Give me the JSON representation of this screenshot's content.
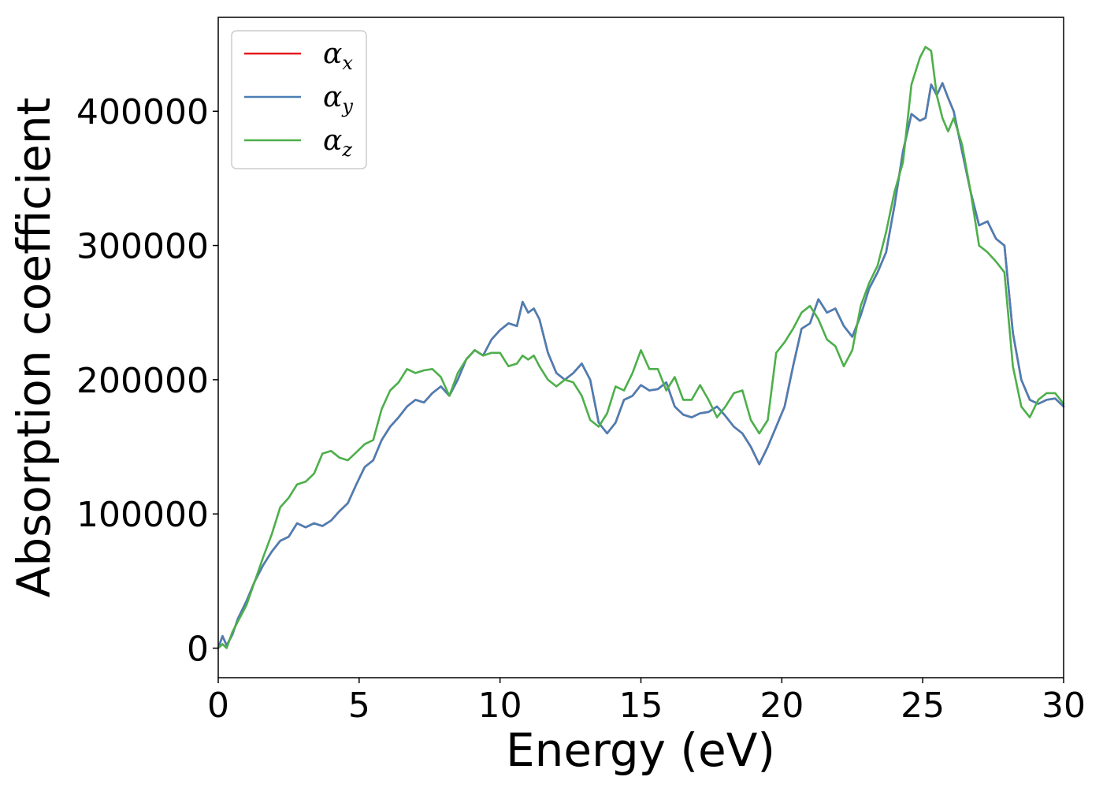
{
  "chart_data": {
    "type": "line",
    "xlabel": "Energy (eV)",
    "ylabel": "Absorption coefficient",
    "xlim": [
      0,
      30
    ],
    "ylim": [
      -22000,
      470000
    ],
    "xticks": [
      0,
      5,
      10,
      15,
      20,
      25,
      30
    ],
    "yticks": [
      0,
      100000,
      200000,
      300000,
      400000
    ],
    "grid": false,
    "legend_position": "top-left",
    "series": [
      {
        "name": "α",
        "subscript": "x",
        "color": "#e41a1c",
        "x": [
          0,
          0.15,
          0.3,
          0.5,
          0.7,
          1.0,
          1.3,
          1.6,
          1.9,
          2.2,
          2.5,
          2.8,
          3.1,
          3.4,
          3.7,
          4.0,
          4.3,
          4.6,
          4.9,
          5.2,
          5.5,
          5.8,
          6.1,
          6.4,
          6.7,
          7.0,
          7.3,
          7.6,
          7.9,
          8.2,
          8.5,
          8.8,
          9.1,
          9.4,
          9.7,
          10.0,
          10.3,
          10.6,
          10.8,
          11.0,
          11.2,
          11.4,
          11.7,
          12.0,
          12.3,
          12.6,
          12.9,
          13.2,
          13.5,
          13.8,
          14.1,
          14.4,
          14.7,
          15.0,
          15.3,
          15.6,
          15.9,
          16.2,
          16.5,
          16.8,
          17.1,
          17.4,
          17.7,
          18.0,
          18.3,
          18.6,
          18.9,
          19.2,
          19.5,
          19.8,
          20.1,
          20.4,
          20.7,
          21.0,
          21.3,
          21.6,
          21.9,
          22.2,
          22.5,
          22.8,
          23.1,
          23.4,
          23.7,
          24.0,
          24.3,
          24.6,
          24.9,
          25.1,
          25.3,
          25.5,
          25.7,
          25.9,
          26.1,
          26.4,
          26.7,
          27.0,
          27.3,
          27.6,
          27.9,
          28.2,
          28.5,
          28.8,
          29.1,
          29.4,
          29.7,
          30.0
        ],
        "y": [
          0,
          9000,
          2000,
          10000,
          22000,
          35000,
          50000,
          62000,
          72000,
          80000,
          83000,
          93000,
          90000,
          93000,
          91000,
          95000,
          102000,
          108000,
          122000,
          135000,
          140000,
          155000,
          165000,
          172000,
          180000,
          185000,
          183000,
          190000,
          195000,
          188000,
          200000,
          215000,
          222000,
          218000,
          230000,
          237000,
          242000,
          240000,
          258000,
          250000,
          253000,
          245000,
          220000,
          205000,
          200000,
          205000,
          212000,
          200000,
          168000,
          160000,
          168000,
          185000,
          188000,
          196000,
          192000,
          193000,
          198000,
          180000,
          174000,
          172000,
          175000,
          176000,
          180000,
          173000,
          165000,
          160000,
          150000,
          137000,
          150000,
          165000,
          180000,
          210000,
          238000,
          242000,
          260000,
          250000,
          253000,
          240000,
          232000,
          248000,
          268000,
          280000,
          295000,
          330000,
          370000,
          398000,
          393000,
          395000,
          420000,
          412000,
          421000,
          410000,
          400000,
          370000,
          340000,
          315000,
          318000,
          305000,
          300000,
          235000,
          200000,
          185000,
          182000,
          185000,
          186000,
          180000
        ]
      },
      {
        "name": "α",
        "subscript": "y",
        "color": "#4a7fb5",
        "x": [
          0,
          0.15,
          0.3,
          0.5,
          0.7,
          1.0,
          1.3,
          1.6,
          1.9,
          2.2,
          2.5,
          2.8,
          3.1,
          3.4,
          3.7,
          4.0,
          4.3,
          4.6,
          4.9,
          5.2,
          5.5,
          5.8,
          6.1,
          6.4,
          6.7,
          7.0,
          7.3,
          7.6,
          7.9,
          8.2,
          8.5,
          8.8,
          9.1,
          9.4,
          9.7,
          10.0,
          10.3,
          10.6,
          10.8,
          11.0,
          11.2,
          11.4,
          11.7,
          12.0,
          12.3,
          12.6,
          12.9,
          13.2,
          13.5,
          13.8,
          14.1,
          14.4,
          14.7,
          15.0,
          15.3,
          15.6,
          15.9,
          16.2,
          16.5,
          16.8,
          17.1,
          17.4,
          17.7,
          18.0,
          18.3,
          18.6,
          18.9,
          19.2,
          19.5,
          19.8,
          20.1,
          20.4,
          20.7,
          21.0,
          21.3,
          21.6,
          21.9,
          22.2,
          22.5,
          22.8,
          23.1,
          23.4,
          23.7,
          24.0,
          24.3,
          24.6,
          24.9,
          25.1,
          25.3,
          25.5,
          25.7,
          25.9,
          26.1,
          26.4,
          26.7,
          27.0,
          27.3,
          27.6,
          27.9,
          28.2,
          28.5,
          28.8,
          29.1,
          29.4,
          29.7,
          30.0
        ],
        "y": [
          0,
          9000,
          2000,
          10000,
          22000,
          35000,
          50000,
          62000,
          72000,
          80000,
          83000,
          93000,
          90000,
          93000,
          91000,
          95000,
          102000,
          108000,
          122000,
          135000,
          140000,
          155000,
          165000,
          172000,
          180000,
          185000,
          183000,
          190000,
          195000,
          188000,
          200000,
          215000,
          222000,
          218000,
          230000,
          237000,
          242000,
          240000,
          258000,
          250000,
          253000,
          245000,
          220000,
          205000,
          200000,
          205000,
          212000,
          200000,
          168000,
          160000,
          168000,
          185000,
          188000,
          196000,
          192000,
          193000,
          198000,
          180000,
          174000,
          172000,
          175000,
          176000,
          180000,
          173000,
          165000,
          160000,
          150000,
          137000,
          150000,
          165000,
          180000,
          210000,
          238000,
          242000,
          260000,
          250000,
          253000,
          240000,
          232000,
          248000,
          268000,
          280000,
          295000,
          330000,
          370000,
          398000,
          393000,
          395000,
          420000,
          412000,
          421000,
          410000,
          400000,
          370000,
          340000,
          315000,
          318000,
          305000,
          300000,
          235000,
          200000,
          185000,
          182000,
          185000,
          186000,
          180000
        ]
      },
      {
        "name": "α",
        "subscript": "z",
        "color": "#4daf4a",
        "x": [
          0,
          0.15,
          0.3,
          0.5,
          0.7,
          1.0,
          1.3,
          1.6,
          1.9,
          2.2,
          2.5,
          2.8,
          3.1,
          3.4,
          3.7,
          4.0,
          4.3,
          4.6,
          4.9,
          5.2,
          5.5,
          5.8,
          6.1,
          6.4,
          6.7,
          7.0,
          7.3,
          7.6,
          7.9,
          8.2,
          8.5,
          8.8,
          9.1,
          9.4,
          9.7,
          10.0,
          10.3,
          10.6,
          10.8,
          11.0,
          11.2,
          11.4,
          11.7,
          12.0,
          12.3,
          12.6,
          12.9,
          13.2,
          13.5,
          13.8,
          14.1,
          14.4,
          14.7,
          15.0,
          15.3,
          15.6,
          15.9,
          16.2,
          16.5,
          16.8,
          17.1,
          17.4,
          17.7,
          18.0,
          18.3,
          18.6,
          18.9,
          19.2,
          19.5,
          19.8,
          20.1,
          20.4,
          20.7,
          21.0,
          21.3,
          21.6,
          21.9,
          22.2,
          22.5,
          22.8,
          23.1,
          23.4,
          23.7,
          24.0,
          24.3,
          24.6,
          24.9,
          25.1,
          25.3,
          25.5,
          25.7,
          25.9,
          26.1,
          26.4,
          26.7,
          27.0,
          27.3,
          27.6,
          27.9,
          28.2,
          28.5,
          28.8,
          29.1,
          29.4,
          29.7,
          30.0
        ],
        "y": [
          0,
          3000,
          0,
          12000,
          20000,
          32000,
          50000,
          68000,
          85000,
          105000,
          112000,
          122000,
          124000,
          130000,
          145000,
          147000,
          142000,
          140000,
          146000,
          152000,
          155000,
          178000,
          192000,
          198000,
          208000,
          205000,
          207000,
          208000,
          202000,
          188000,
          205000,
          215000,
          222000,
          218000,
          220000,
          220000,
          210000,
          212000,
          218000,
          215000,
          218000,
          210000,
          200000,
          195000,
          200000,
          198000,
          188000,
          170000,
          165000,
          175000,
          195000,
          192000,
          205000,
          222000,
          208000,
          208000,
          192000,
          202000,
          185000,
          185000,
          196000,
          185000,
          172000,
          180000,
          190000,
          192000,
          170000,
          160000,
          170000,
          220000,
          228000,
          238000,
          250000,
          255000,
          245000,
          230000,
          225000,
          210000,
          222000,
          255000,
          272000,
          285000,
          310000,
          340000,
          362000,
          420000,
          440000,
          448000,
          445000,
          412000,
          395000,
          385000,
          395000,
          375000,
          340000,
          300000,
          295000,
          288000,
          280000,
          210000,
          180000,
          172000,
          185000,
          190000,
          190000,
          182000
        ]
      }
    ]
  }
}
